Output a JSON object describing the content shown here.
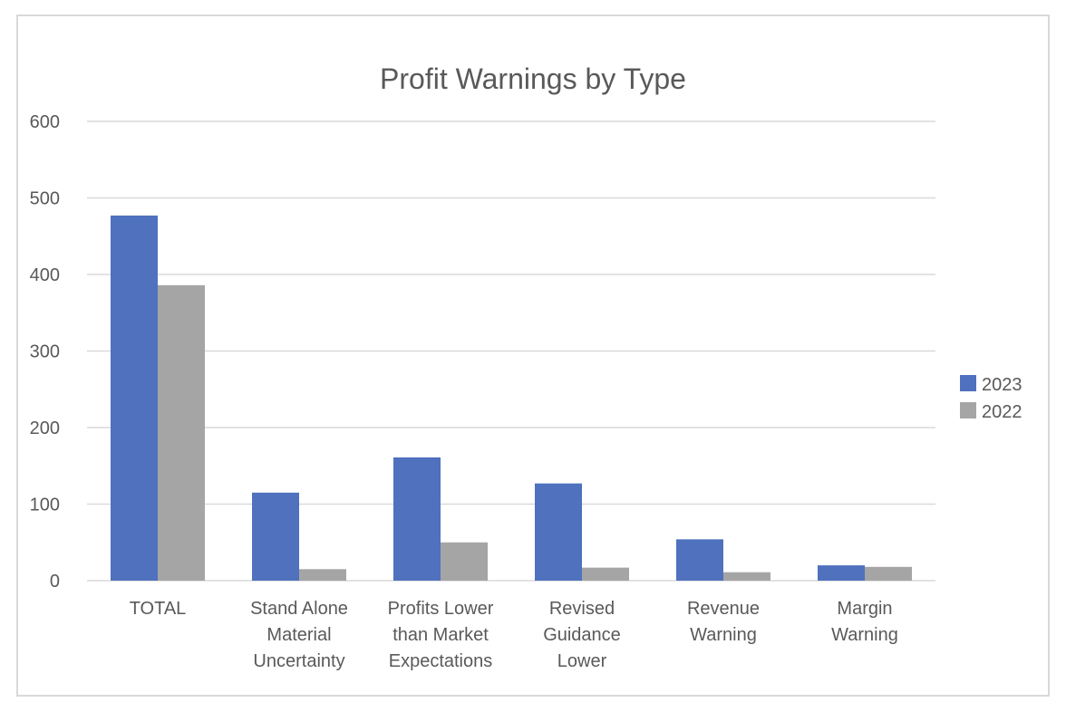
{
  "chart_data": {
    "type": "bar",
    "title": "Profit Warnings by Type",
    "categories": [
      [
        "TOTAL"
      ],
      [
        "Stand Alone",
        "Material",
        "Uncertainty"
      ],
      [
        "Profits Lower",
        "than Market",
        "Expectations"
      ],
      [
        "Revised",
        "Guidance",
        "Lower"
      ],
      [
        "Revenue",
        "Warning"
      ],
      [
        "Margin",
        "Warning"
      ]
    ],
    "series": [
      {
        "name": "2023",
        "color": "#4f71be",
        "values": [
          477,
          115,
          161,
          127,
          54,
          20
        ]
      },
      {
        "name": "2022",
        "color": "#a5a5a5",
        "values": [
          386,
          15,
          50,
          17,
          11,
          18
        ]
      }
    ],
    "ylim": [
      0,
      600
    ],
    "yticks": [
      0,
      100,
      200,
      300,
      400,
      500,
      600
    ],
    "grid": true,
    "legend_position": "right"
  }
}
